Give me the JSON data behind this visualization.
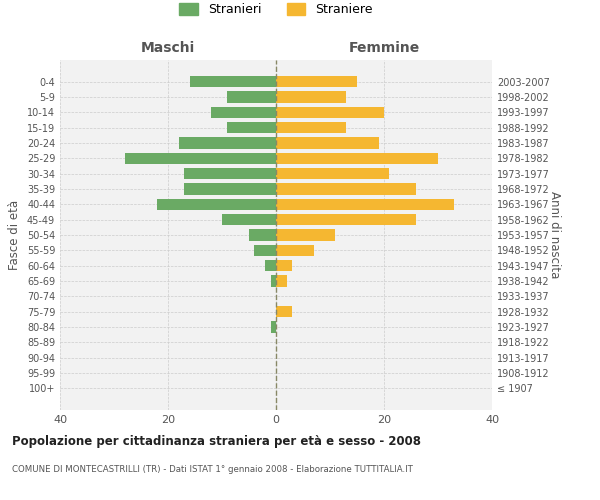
{
  "age_groups": [
    "100+",
    "95-99",
    "90-94",
    "85-89",
    "80-84",
    "75-79",
    "70-74",
    "65-69",
    "60-64",
    "55-59",
    "50-54",
    "45-49",
    "40-44",
    "35-39",
    "30-34",
    "25-29",
    "20-24",
    "15-19",
    "10-14",
    "5-9",
    "0-4"
  ],
  "birth_years": [
    "≤ 1907",
    "1908-1912",
    "1913-1917",
    "1918-1922",
    "1923-1927",
    "1928-1932",
    "1933-1937",
    "1938-1942",
    "1943-1947",
    "1948-1952",
    "1953-1957",
    "1958-1962",
    "1963-1967",
    "1968-1972",
    "1973-1977",
    "1978-1982",
    "1983-1987",
    "1988-1992",
    "1993-1997",
    "1998-2002",
    "2003-2007"
  ],
  "maschi": [
    0,
    0,
    0,
    0,
    1,
    0,
    0,
    1,
    2,
    4,
    5,
    10,
    22,
    17,
    17,
    28,
    18,
    9,
    12,
    9,
    16
  ],
  "femmine": [
    0,
    0,
    0,
    0,
    0,
    3,
    0,
    2,
    3,
    7,
    11,
    26,
    33,
    26,
    21,
    30,
    19,
    13,
    20,
    13,
    15
  ],
  "color_maschi": "#6aaa64",
  "color_femmine": "#f5b731",
  "bg_color": "#f2f2f2",
  "grid_color": "#cccccc",
  "title": "Popolazione per cittadinanza straniera per età e sesso - 2008",
  "subtitle": "COMUNE DI MONTECASTRILLI (TR) - Dati ISTAT 1° gennaio 2008 - Elaborazione TUTTITALIA.IT",
  "xlabel_left": "Maschi",
  "xlabel_right": "Femmine",
  "ylabel_left": "Fasce di età",
  "ylabel_right": "Anni di nascita",
  "legend_maschi": "Stranieri",
  "legend_femmine": "Straniere",
  "xlim": 40
}
